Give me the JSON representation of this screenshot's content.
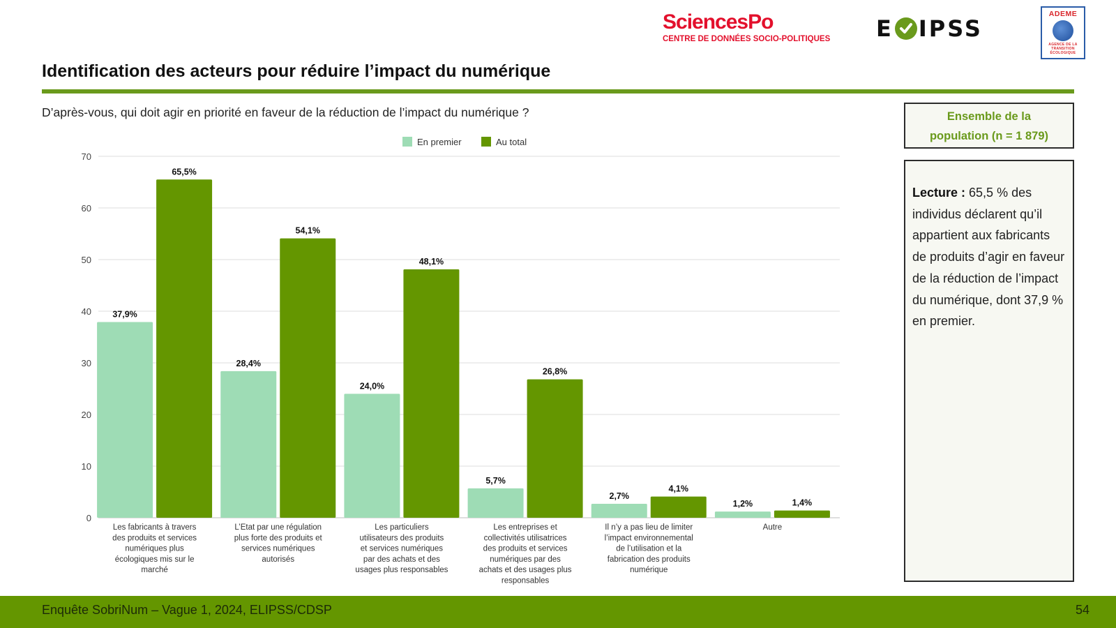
{
  "logos": {
    "sciencespo_title": "SciencesPo",
    "sciencespo_subtitle": "CENTRE DE DONNÉES SOCIO-POLITIQUES",
    "elipss_left": "E",
    "elipss_right": "IPSS",
    "ademe_title": "ADEME",
    "ademe_subtitle_1": "AGENCE DE LA",
    "ademe_subtitle_2": "TRANSITION",
    "ademe_subtitle_3": "ÉCOLOGIQUE"
  },
  "header": {
    "title": "Identification des acteurs pour réduire l’impact du numérique",
    "question": "D’après-vous, qui doit agir en priorité en faveur de la réduction de l’impact du numérique ?"
  },
  "side": {
    "sample_line1": "Ensemble de la",
    "sample_line2": "population (n = 1 879)",
    "reading_label": "Lecture :",
    "reading_text": " 65,5 % des individus déclarent qu’il appartient aux fabricants de produits d’agir en faveur de la réduction de l’impact du numérique, dont 37,9 % en premier."
  },
  "footer": {
    "source": "Enquête SobriNum – Vague 1, 2024, ELIPSS/CDSP",
    "page_number": "54"
  },
  "colors": {
    "accent_green": "#6a9a1c",
    "bar_dark": "#649600",
    "bar_light": "#9edcb5",
    "sciencespo_red": "#e3102c"
  },
  "chart_data": {
    "type": "bar",
    "title": "",
    "xlabel": "",
    "ylabel": "",
    "ylim": [
      0,
      70
    ],
    "yticks": [
      0,
      10,
      20,
      30,
      40,
      50,
      60,
      70
    ],
    "grid": true,
    "legend_position": "top-center",
    "categories": [
      [
        "Les fabricants à travers",
        "des produits et services",
        "numériques plus",
        "écologiques mis sur le",
        "marché"
      ],
      [
        "L’Etat par une régulation",
        "plus forte des produits et",
        "services numériques",
        "autorisés"
      ],
      [
        "Les particuliers",
        "utilisateurs des produits",
        "et services numériques",
        "par des achats et des",
        "usages plus responsables"
      ],
      [
        "Les entreprises et",
        "collectivités utilisatrices",
        "des produits et services",
        "numériques par des",
        "achats et des usages plus",
        "responsables"
      ],
      [
        "Il n’y a pas lieu de limiter",
        "l’impact environnemental",
        "de l’utilisation et la",
        "fabrication des produits",
        "numérique"
      ],
      [
        "Autre"
      ]
    ],
    "series": [
      {
        "name": "En premier",
        "color": "#9edcb5",
        "values": [
          37.9,
          28.4,
          24.0,
          5.7,
          2.7,
          1.2
        ],
        "labels": [
          "37,9%",
          "28,4%",
          "24,0%",
          "5,7%",
          "2,7%",
          "1,2%"
        ]
      },
      {
        "name": "Au total",
        "color": "#649600",
        "values": [
          65.5,
          54.1,
          48.1,
          26.8,
          4.1,
          1.4
        ],
        "labels": [
          "65,5%",
          "54,1%",
          "48,1%",
          "26,8%",
          "4,1%",
          "1,4%"
        ]
      }
    ]
  }
}
